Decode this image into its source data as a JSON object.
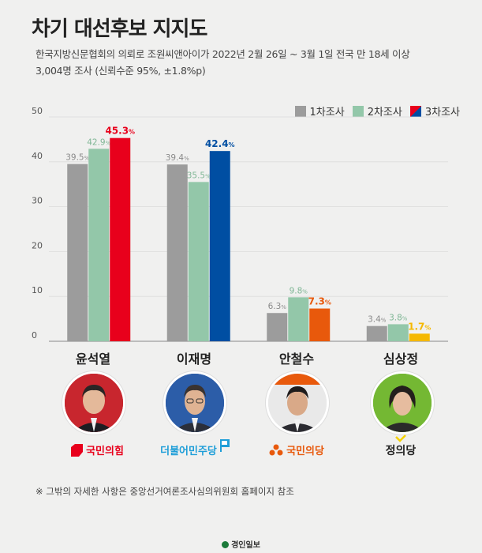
{
  "title": "차기 대선후보 지지도",
  "subtitle_line1": "한국지방신문협회의 의뢰로 조원씨앤아이가 2022년 2월 26일 ~ 3월 1일 전국 만 18세 이상",
  "subtitle_line2": "3,004명 조사 (신뢰수준 95%, ±1.8%p)",
  "footnote": "※ 그밖의 자세한 사항은 중앙선거여론조사심의위원회 홈페이지 참조",
  "brand": "경인일보",
  "colors": {
    "first": "#9c9c9c",
    "second": "#93c7a9"
  },
  "chart_data": {
    "type": "bar",
    "title": "",
    "xlabel": "",
    "ylabel": "",
    "ylim": [
      0,
      50
    ],
    "yticks": [
      0,
      10,
      20,
      30,
      40,
      50
    ],
    "legend_position": "top-right",
    "grid": true,
    "categories": [
      "윤석열",
      "이재명",
      "안철수",
      "심상정"
    ],
    "series": [
      {
        "name": "1차조사",
        "values": [
          39.5,
          39.4,
          6.3,
          3.4
        ]
      },
      {
        "name": "2차조사",
        "values": [
          42.9,
          35.5,
          9.8,
          3.8
        ]
      },
      {
        "name": "3차조사",
        "values": [
          45.3,
          42.4,
          7.3,
          1.7
        ]
      }
    ],
    "third_colors": [
      "#e8001c",
      "#004ea2",
      "#e8590c",
      "#f5b800"
    ],
    "value_unit": "%"
  },
  "candidates": [
    {
      "name": "윤석열",
      "party": "국민의힘",
      "party_color": "#e8001c",
      "party_icon": "ppp-logo-icon"
    },
    {
      "name": "이재명",
      "party": "더불어민주당",
      "party_color": "#1e9ed8",
      "party_icon": "dp-logo-icon"
    },
    {
      "name": "안철수",
      "party": "국민의당",
      "party_color": "#e8590c",
      "party_icon": "pp-logo-icon"
    },
    {
      "name": "심상정",
      "party": "정의당",
      "party_color": "#222222",
      "party_icon": "justice-logo-icon"
    }
  ]
}
